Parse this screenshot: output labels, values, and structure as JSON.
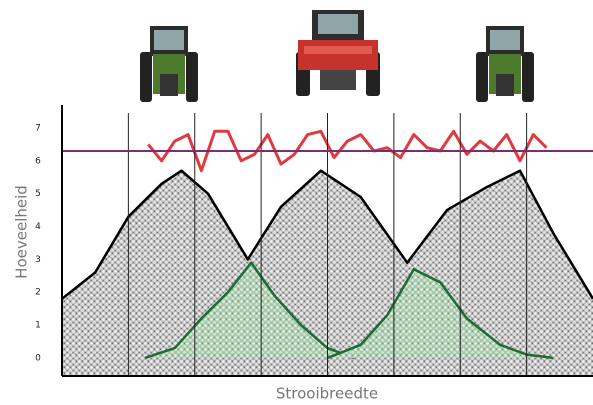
{
  "chart_data": {
    "type": "area",
    "x_label": "Strooibreedte",
    "y_label": "Hoeveelheid",
    "xlim": [
      0,
      8
    ],
    "ylim": [
      -0.55,
      7.7
    ],
    "yticks": [
      0,
      1,
      2,
      3,
      4,
      5,
      6,
      7
    ],
    "dividers": [
      1,
      2,
      3,
      4,
      5,
      6,
      7
    ],
    "reference_line": {
      "value": 6.3,
      "color": "#7b2d6e"
    },
    "series": [
      {
        "kind": "total",
        "color": "#000000",
        "fill": "#c9c9c9",
        "x": [
          0,
          0.5,
          1,
          1.5,
          1.8,
          2.2,
          2.8,
          3.3,
          3.9,
          4.5,
          5.2,
          5.8,
          6.4,
          6.9,
          7.4,
          8
        ],
        "values": [
          1.8,
          2.6,
          4.3,
          5.3,
          5.7,
          5.0,
          3.0,
          4.6,
          5.7,
          4.9,
          2.9,
          4.5,
          5.2,
          5.7,
          3.8,
          1.8
        ]
      },
      {
        "kind": "single",
        "color": "#1f6b34",
        "fill": "#cfe8d2",
        "x": [
          1.25,
          1.7,
          2.1,
          2.5,
          2.85,
          3.2,
          3.6,
          4.0,
          4.4
        ],
        "values": [
          0,
          0.3,
          1.2,
          2.0,
          2.9,
          1.9,
          1.0,
          0.3,
          0
        ]
      },
      {
        "kind": "single",
        "color": "#1f6b34",
        "fill": "#cfe8d2",
        "x": [
          4.0,
          4.5,
          4.9,
          5.3,
          5.7,
          6.1,
          6.6,
          7.0,
          7.4
        ],
        "values": [
          0,
          0.4,
          1.3,
          2.7,
          2.3,
          1.2,
          0.4,
          0.1,
          0
        ]
      },
      {
        "kind": "line",
        "color": "#e03a3e",
        "x": [
          1.3,
          1.5,
          1.7,
          1.9,
          2.1,
          2.3,
          2.5,
          2.7,
          2.9,
          3.1,
          3.3,
          3.5,
          3.7,
          3.9,
          4.1,
          4.3,
          4.5,
          4.7,
          4.9,
          5.1,
          5.3,
          5.5,
          5.7,
          5.9,
          6.1,
          6.3,
          6.5,
          6.7,
          6.9,
          7.1,
          7.3
        ],
        "values": [
          6.5,
          6.0,
          6.6,
          6.8,
          5.7,
          6.9,
          6.9,
          6.0,
          6.2,
          6.8,
          5.9,
          6.2,
          6.8,
          6.9,
          6.1,
          6.6,
          6.8,
          6.3,
          6.4,
          6.1,
          6.8,
          6.4,
          6.3,
          6.9,
          6.2,
          6.6,
          6.3,
          6.8,
          6.0,
          6.8,
          6.4
        ]
      }
    ]
  }
}
